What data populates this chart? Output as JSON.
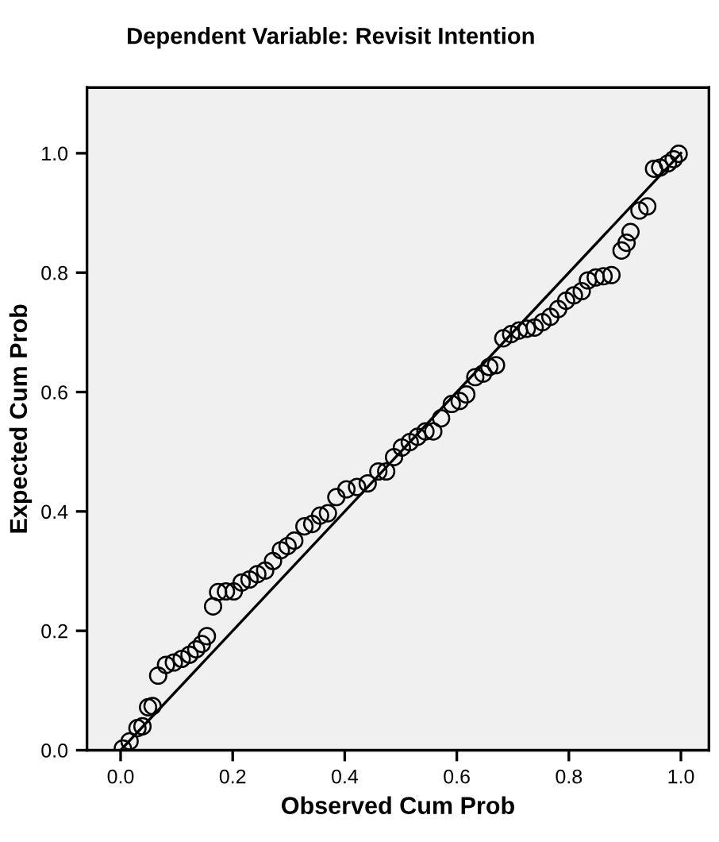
{
  "chart_data": {
    "type": "scatter",
    "title": "Dependent Variable: Revisit Intention",
    "xlabel": "Observed Cum Prob",
    "ylabel": "Expected Cum Prob",
    "xlim": [
      -0.06,
      1.05
    ],
    "ylim": [
      0,
      1.11
    ],
    "xticks": [
      {
        "value": 0,
        "label": "0.0"
      },
      {
        "value": 0.2,
        "label": "0.2"
      },
      {
        "value": 0.4,
        "label": "0.4"
      },
      {
        "value": 0.6,
        "label": "0.6"
      },
      {
        "value": 0.8,
        "label": "0.8"
      },
      {
        "value": 1,
        "label": "1.0"
      }
    ],
    "yticks": [
      {
        "value": 0,
        "label": "0.0"
      },
      {
        "value": 0.2,
        "label": "0.2"
      },
      {
        "value": 0.4,
        "label": "0.4"
      },
      {
        "value": 0.6,
        "label": "0.6"
      },
      {
        "value": 0.8,
        "label": "0.8"
      },
      {
        "value": 1,
        "label": "1.0"
      }
    ],
    "grid": false,
    "series": [
      {
        "marker": "circle",
        "color": "#000000",
        "x": [
          0.004,
          0.016,
          0.03,
          0.039,
          0.049,
          0.057,
          0.067,
          0.081,
          0.095,
          0.109,
          0.123,
          0.135,
          0.145,
          0.154,
          0.165,
          0.174,
          0.188,
          0.202,
          0.216,
          0.23,
          0.244,
          0.258,
          0.272,
          0.286,
          0.298,
          0.31,
          0.328,
          0.342,
          0.356,
          0.37,
          0.385,
          0.403,
          0.422,
          0.441,
          0.46,
          0.474,
          0.488,
          0.502,
          0.516,
          0.53,
          0.544,
          0.558,
          0.572,
          0.591,
          0.605,
          0.617,
          0.633,
          0.647,
          0.658,
          0.67,
          0.683,
          0.697,
          0.711,
          0.725,
          0.739,
          0.753,
          0.767,
          0.781,
          0.795,
          0.809,
          0.823,
          0.834,
          0.848,
          0.862,
          0.876,
          0.894,
          0.903,
          0.91,
          0.926,
          0.94,
          0.952,
          0.963,
          0.977,
          0.987,
          0.996
        ],
        "values": [
          0.003,
          0.015,
          0.037,
          0.04,
          0.072,
          0.074,
          0.125,
          0.143,
          0.147,
          0.153,
          0.16,
          0.169,
          0.178,
          0.191,
          0.241,
          0.265,
          0.266,
          0.266,
          0.281,
          0.286,
          0.295,
          0.301,
          0.317,
          0.335,
          0.342,
          0.351,
          0.375,
          0.379,
          0.393,
          0.397,
          0.424,
          0.437,
          0.441,
          0.447,
          0.467,
          0.467,
          0.491,
          0.507,
          0.516,
          0.525,
          0.534,
          0.534,
          0.556,
          0.58,
          0.585,
          0.596,
          0.625,
          0.631,
          0.642,
          0.645,
          0.69,
          0.697,
          0.703,
          0.706,
          0.708,
          0.717,
          0.726,
          0.739,
          0.753,
          0.762,
          0.769,
          0.787,
          0.792,
          0.794,
          0.796,
          0.837,
          0.85,
          0.868,
          0.904,
          0.911,
          0.974,
          0.976,
          0.983,
          0.99,
          0.999
        ]
      },
      {
        "type": "line",
        "color": "#000000",
        "x": [
          0,
          1
        ],
        "values": [
          0,
          1
        ]
      }
    ]
  }
}
